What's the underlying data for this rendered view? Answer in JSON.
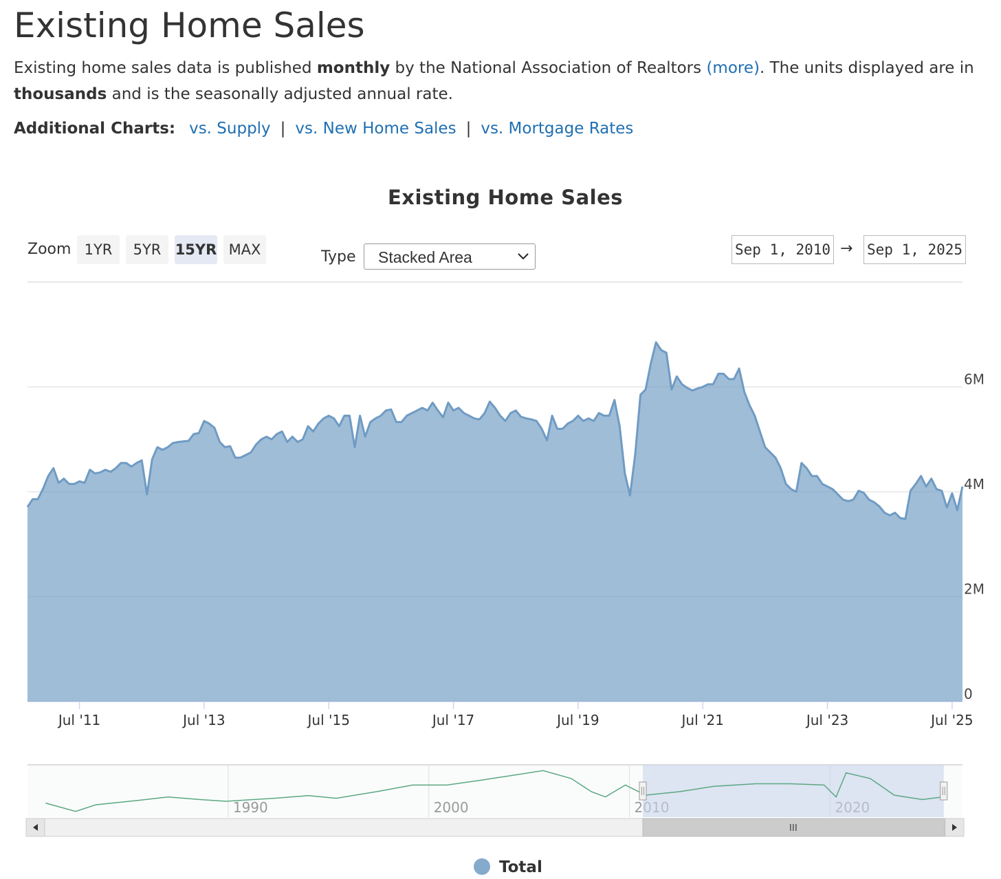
{
  "header": {
    "title": "Existing Home Sales",
    "description": [
      "Existing home sales data is published ",
      "monthly",
      " by the National Association of Realtors ",
      "(more)",
      ". The units displayed are in ",
      "thousands",
      " and is the seasonally adjusted annual rate."
    ],
    "additional_charts": {
      "label": "Additional Charts:",
      "links": [
        "vs. Supply",
        "vs. New Home Sales",
        "vs. Mortgage Rates"
      ],
      "separator": "|"
    }
  },
  "controls": {
    "zoom_label": "Zoom",
    "zoom_options": [
      "1YR",
      "5YR",
      "15YR",
      "MAX"
    ],
    "zoom_selected": "15YR",
    "type_label": "Type",
    "type_value": "Stacked Area",
    "date_from": "Sep 1, 2010",
    "date_arrow": "→",
    "date_to": "Sep 1, 2025"
  },
  "chart_data": {
    "type": "area",
    "title": "Existing Home Sales",
    "x": [
      "2010-09",
      "2010-10",
      "2010-11",
      "2010-12",
      "2011-01",
      "2011-02",
      "2011-03",
      "2011-04",
      "2011-05",
      "2011-06",
      "2011-07",
      "2011-08",
      "2011-09",
      "2011-10",
      "2011-11",
      "2011-12",
      "2012-01",
      "2012-02",
      "2012-03",
      "2012-04",
      "2012-05",
      "2012-06",
      "2012-07",
      "2012-08",
      "2012-09",
      "2012-10",
      "2012-11",
      "2012-12",
      "2013-01",
      "2013-02",
      "2013-03",
      "2013-04",
      "2013-05",
      "2013-06",
      "2013-07",
      "2013-08",
      "2013-09",
      "2013-10",
      "2013-11",
      "2013-12",
      "2014-01",
      "2014-02",
      "2014-03",
      "2014-04",
      "2014-05",
      "2014-06",
      "2014-07",
      "2014-08",
      "2014-09",
      "2014-10",
      "2014-11",
      "2014-12",
      "2015-01",
      "2015-02",
      "2015-03",
      "2015-04",
      "2015-05",
      "2015-06",
      "2015-07",
      "2015-08",
      "2015-09",
      "2015-10",
      "2015-11",
      "2015-12",
      "2016-01",
      "2016-02",
      "2016-03",
      "2016-04",
      "2016-05",
      "2016-06",
      "2016-07",
      "2016-08",
      "2016-09",
      "2016-10",
      "2016-11",
      "2016-12",
      "2017-01",
      "2017-02",
      "2017-03",
      "2017-04",
      "2017-05",
      "2017-06",
      "2017-07",
      "2017-08",
      "2017-09",
      "2017-10",
      "2017-11",
      "2017-12",
      "2018-01",
      "2018-02",
      "2018-03",
      "2018-04",
      "2018-05",
      "2018-06",
      "2018-07",
      "2018-08",
      "2018-09",
      "2018-10",
      "2018-11",
      "2018-12",
      "2019-01",
      "2019-02",
      "2019-03",
      "2019-04",
      "2019-05",
      "2019-06",
      "2019-07",
      "2019-08",
      "2019-09",
      "2019-10",
      "2019-11",
      "2019-12",
      "2020-01",
      "2020-02",
      "2020-03",
      "2020-04",
      "2020-05",
      "2020-06",
      "2020-07",
      "2020-08",
      "2020-09",
      "2020-10",
      "2020-11",
      "2020-12",
      "2021-01",
      "2021-02",
      "2021-03",
      "2021-04",
      "2021-05",
      "2021-06",
      "2021-07",
      "2021-08",
      "2021-09",
      "2021-10",
      "2021-11",
      "2021-12",
      "2022-01",
      "2022-02",
      "2022-03",
      "2022-04",
      "2022-05",
      "2022-06",
      "2022-07",
      "2022-08",
      "2022-09",
      "2022-10",
      "2022-11",
      "2022-12",
      "2023-01",
      "2023-02",
      "2023-03",
      "2023-04",
      "2023-05",
      "2023-06",
      "2023-07",
      "2023-08",
      "2023-09",
      "2023-10",
      "2023-11",
      "2023-12",
      "2024-01",
      "2024-02",
      "2024-03",
      "2024-04",
      "2024-05",
      "2024-06",
      "2024-07",
      "2024-08",
      "2024-09",
      "2024-10",
      "2024-11",
      "2024-12",
      "2025-01",
      "2025-02",
      "2025-03",
      "2025-04",
      "2025-05",
      "2025-06",
      "2025-07",
      "2025-08",
      "2025-09"
    ],
    "series": [
      {
        "name": "Total",
        "color": "#6f9bc3",
        "values": [
          3710000,
          3860000,
          3860000,
          4060000,
          4300000,
          4450000,
          4170000,
          4250000,
          4150000,
          4150000,
          4200000,
          4170000,
          4420000,
          4350000,
          4370000,
          4420000,
          4380000,
          4450000,
          4550000,
          4550000,
          4480000,
          4550000,
          4600000,
          3950000,
          4620000,
          4850000,
          4800000,
          4850000,
          4930000,
          4950000,
          4960000,
          4970000,
          5100000,
          5120000,
          5350000,
          5300000,
          5220000,
          4950000,
          4850000,
          4870000,
          4650000,
          4650000,
          4700000,
          4750000,
          4900000,
          5000000,
          5050000,
          5000000,
          5100000,
          5150000,
          4950000,
          5050000,
          4950000,
          5000000,
          5250000,
          5150000,
          5300000,
          5400000,
          5450000,
          5400000,
          5250000,
          5450000,
          5450000,
          4850000,
          5450000,
          5050000,
          5330000,
          5400000,
          5450000,
          5550000,
          5570000,
          5330000,
          5330000,
          5450000,
          5500000,
          5550000,
          5600000,
          5550000,
          5700000,
          5550000,
          5420000,
          5700000,
          5550000,
          5600000,
          5500000,
          5450000,
          5400000,
          5380000,
          5500000,
          5720000,
          5600000,
          5450000,
          5350000,
          5500000,
          5550000,
          5430000,
          5400000,
          5380000,
          5350000,
          5200000,
          4980000,
          5450000,
          5200000,
          5200000,
          5300000,
          5350000,
          5450000,
          5350000,
          5400000,
          5350000,
          5500000,
          5450000,
          5450000,
          5750000,
          5250000,
          4350000,
          3930000,
          4720000,
          5850000,
          5950000,
          6450000,
          6850000,
          6700000,
          6650000,
          5950000,
          6200000,
          6050000,
          5980000,
          5930000,
          5970000,
          6000000,
          6050000,
          6050000,
          6250000,
          6250000,
          6150000,
          6150000,
          6350000,
          5900000,
          5650000,
          5450000,
          5150000,
          4850000,
          4750000,
          4650000,
          4450000,
          4150000,
          4050000,
          4000000,
          4550000,
          4450000,
          4300000,
          4300000,
          4150000,
          4100000,
          4050000,
          3950000,
          3850000,
          3820000,
          3850000,
          4020000,
          3980000,
          3850000,
          3800000,
          3720000,
          3600000,
          3550000,
          3600000,
          3500000,
          3480000,
          4020000,
          4150000,
          4300000,
          4100000,
          4250000,
          4050000,
          4020000,
          3700000,
          3970000,
          3650000,
          4100000
        ]
      }
    ],
    "ylim": [
      0,
      8000000
    ],
    "yticks": [
      0,
      {
        "value": 2000000,
        "label": "2M"
      },
      {
        "value": 4000000,
        "label": "4M"
      },
      {
        "value": 6000000,
        "label": "6M"
      }
    ],
    "xticks": [
      {
        "value": "2011-07",
        "label": "Jul '11"
      },
      {
        "value": "2013-07",
        "label": "Jul '13"
      },
      {
        "value": "2015-07",
        "label": "Jul '15"
      },
      {
        "value": "2017-07",
        "label": "Jul '17"
      },
      {
        "value": "2019-07",
        "label": "Jul '19"
      },
      {
        "value": "2021-07",
        "label": "Jul '21"
      },
      {
        "value": "2023-07",
        "label": "Jul '23"
      },
      {
        "value": "2025-07",
        "label": "Jul '25"
      }
    ],
    "grid": true,
    "legend": "bottom"
  },
  "navigator": {
    "type": "line",
    "color": "#5aa882",
    "x": [
      1980.9,
      1982.4,
      1983.4,
      1985.5,
      1987.0,
      1988.6,
      1989.9,
      1992.3,
      1994.0,
      1995.4,
      1997.4,
      1999.2,
      2000.9,
      2002.6,
      2004.3,
      2005.7,
      2007.1,
      2008.1,
      2008.8,
      2009.8,
      2010.8,
      2012.5,
      2014.2,
      2016.3,
      2018.0,
      2019.7,
      2020.3,
      2020.8,
      2022.0,
      2023.2,
      2024.6,
      2025.6
    ],
    "values": [
      3400000,
      2450000,
      3200000,
      3700000,
      4100000,
      3800000,
      3600000,
      3950000,
      4250000,
      3950000,
      4700000,
      5450000,
      5450000,
      6000000,
      6600000,
      7100000,
      6200000,
      4700000,
      4100000,
      5450000,
      4300000,
      4700000,
      5300000,
      5600000,
      5600000,
      5450000,
      4100000,
      6850000,
      6200000,
      4300000,
      3800000,
      4100000
    ],
    "xlim": [
      1980,
      2026.6
    ],
    "ylim": [
      1800000,
      7600000
    ],
    "xticks": [
      1990,
      2000,
      2010,
      2020
    ]
  }
}
